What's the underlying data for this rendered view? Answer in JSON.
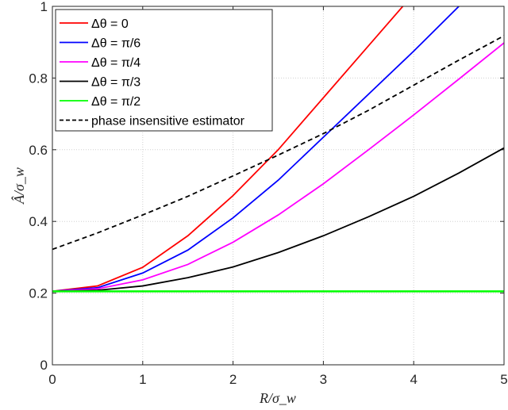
{
  "chart_data": {
    "type": "line",
    "title": "",
    "xlabel": "R/σ_w",
    "ylabel": "Â/σ_w",
    "xlim": [
      0,
      5
    ],
    "ylim": [
      0,
      1
    ],
    "xticks": [
      "0",
      "1",
      "2",
      "3",
      "4",
      "5"
    ],
    "yticks": [
      "0",
      "0.2",
      "0.4",
      "0.6",
      "0.8",
      "1"
    ],
    "grid": true,
    "legend_position": "top-left",
    "x": [
      0,
      0.5,
      1,
      1.5,
      2,
      2.5,
      3,
      3.5,
      4,
      4.5,
      5
    ],
    "series": [
      {
        "name": "Δθ = 0",
        "color": "#ff0000",
        "dash": false,
        "values": [
          0.205,
          0.22,
          0.272,
          0.36,
          0.472,
          0.6,
          0.745,
          0.89,
          1.035,
          null,
          null
        ]
      },
      {
        "name": "Δθ = π/6",
        "color": "#0000ff",
        "dash": false,
        "values": [
          0.205,
          0.215,
          0.256,
          0.32,
          0.41,
          0.515,
          0.635,
          0.755,
          0.875,
          1.0,
          1.12
        ]
      },
      {
        "name": "Δθ = π/4",
        "color": "#ff00ff",
        "dash": false,
        "values": [
          0.205,
          0.212,
          0.237,
          0.28,
          0.342,
          0.418,
          0.505,
          0.6,
          0.697,
          0.797,
          0.898
        ]
      },
      {
        "name": "Δθ = π/3",
        "color": "#000000",
        "dash": false,
        "values": [
          0.205,
          0.208,
          0.22,
          0.243,
          0.273,
          0.313,
          0.36,
          0.413,
          0.47,
          0.535,
          0.605
        ]
      },
      {
        "name": "Δθ = π/2",
        "color": "#00ff00",
        "dash": false,
        "values": [
          0.205,
          0.205,
          0.205,
          0.205,
          0.205,
          0.205,
          0.205,
          0.205,
          0.205,
          0.205,
          0.205
        ]
      },
      {
        "name": "phase insensitive estimator",
        "color": "#000000",
        "dash": true,
        "values": [
          0.322,
          0.368,
          0.418,
          0.47,
          0.527,
          0.585,
          0.645,
          0.71,
          0.78,
          0.85,
          0.918
        ]
      }
    ]
  }
}
